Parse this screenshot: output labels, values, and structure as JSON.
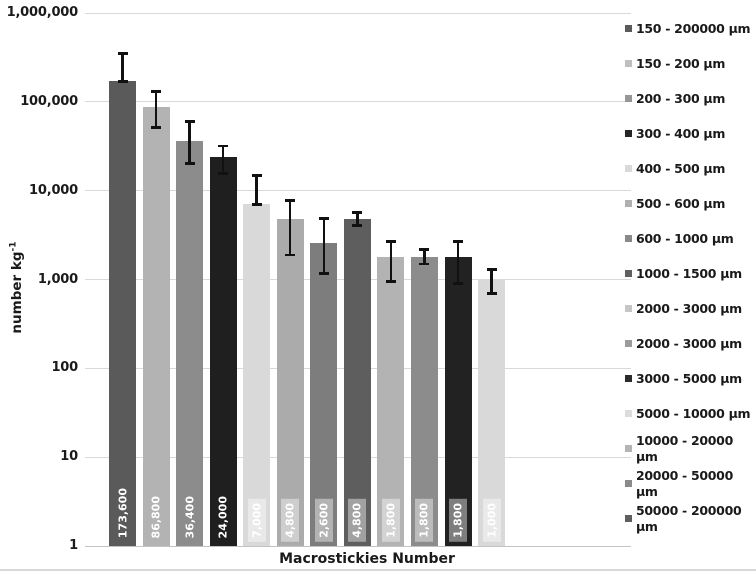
{
  "figure": {
    "xlabel": "Macrostickies Number",
    "ylabel_base": "number kg",
    "ylabel_sup": "-1"
  },
  "chart_data": {
    "type": "bar",
    "title": "",
    "xlabel": "Macrostickies Number",
    "ylabel": "number kg^-1",
    "y_scale": "log",
    "ylim": [
      1,
      1000000
    ],
    "grid": true,
    "legend_position": "right",
    "y_ticks": [
      {
        "label": "1,000,000",
        "value": 1000000
      },
      {
        "label": "100,000",
        "value": 100000
      },
      {
        "label": "10,000",
        "value": 10000
      },
      {
        "label": "1,000",
        "value": 1000
      },
      {
        "label": "100",
        "value": 100
      },
      {
        "label": "10",
        "value": 10
      },
      {
        "label": "1",
        "value": 1
      }
    ],
    "bars": [
      {
        "label": "173,600",
        "value": 173600,
        "err_low": 170000,
        "err_high": 350000,
        "color": "#5a5a5a",
        "label_box": false
      },
      {
        "label": "86,800",
        "value": 86800,
        "err_low": 52000,
        "err_high": 132000,
        "color": "#b3b3b3",
        "label_box": false
      },
      {
        "label": "36,400",
        "value": 36400,
        "err_low": 20500,
        "err_high": 60000,
        "color": "#8c8c8c",
        "label_box": false
      },
      {
        "label": "24,000",
        "value": 24000,
        "err_low": 15800,
        "err_high": 32000,
        "color": "#1f1f1f",
        "label_box": false
      },
      {
        "label": "7,000",
        "value": 7000,
        "err_low": 7000,
        "err_high": 15000,
        "color": "#d9d9d9",
        "label_box": true
      },
      {
        "label": "4,800",
        "value": 4800,
        "err_low": 1900,
        "err_high": 7800,
        "color": "#ababab",
        "label_box": true
      },
      {
        "label": "2,600",
        "value": 2600,
        "err_low": 1180,
        "err_high": 4900,
        "color": "#7d7d7d",
        "label_box": true
      },
      {
        "label": "4,800",
        "value": 4800,
        "err_low": 4100,
        "err_high": 5700,
        "color": "#5e5e5e",
        "label_box": true
      },
      {
        "label": "1,800",
        "value": 1800,
        "err_low": 960,
        "err_high": 2700,
        "color": "#b3b3b3",
        "label_box": true
      },
      {
        "label": "1,800",
        "value": 1800,
        "err_low": 1500,
        "err_high": 2200,
        "color": "#8c8c8c",
        "label_box": true
      },
      {
        "label": "1,800",
        "value": 1800,
        "err_low": 910,
        "err_high": 2700,
        "color": "#222222",
        "label_box": true
      },
      {
        "label": "1,000",
        "value": 1000,
        "err_low": 700,
        "err_high": 1300,
        "color": "#d9d9d9",
        "label_box": true
      }
    ],
    "legend": [
      {
        "label": "150 - 200000 μm",
        "color": "#5a5a5a"
      },
      {
        "label": "150 - 200 μm",
        "color": "#bfbfbf"
      },
      {
        "label": "200 - 300 μm",
        "color": "#969696"
      },
      {
        "label": "300 - 400 μm",
        "color": "#262626"
      },
      {
        "label": "400 - 500 μm",
        "color": "#d9d9d9"
      },
      {
        "label": "500 - 600 μm",
        "color": "#b0b0b0"
      },
      {
        "label": "600 - 1000 μm",
        "color": "#898989"
      },
      {
        "label": "1000 - 1500 μm",
        "color": "#606060"
      },
      {
        "label": "2000 - 3000 μm",
        "color": "#c6c6c6"
      },
      {
        "label": "2000 - 3000 μm",
        "color": "#9b9b9b"
      },
      {
        "label": "3000 - 5000 μm",
        "color": "#2b2b2b"
      },
      {
        "label": "5000 - 10000 μm",
        "color": "#dcdcdc"
      },
      {
        "label": "10000 - 20000 μm",
        "color": "#b4b4b4"
      },
      {
        "label": "20000 - 50000 μm",
        "color": "#8a8a8a"
      },
      {
        "label": "50000 - 200000 μm",
        "color": "#5f5f5f"
      }
    ]
  }
}
